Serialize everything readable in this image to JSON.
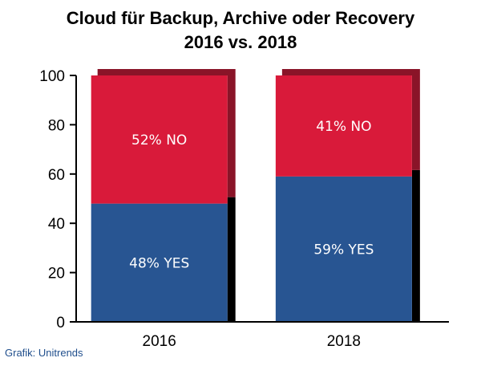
{
  "title_line1": "Cloud für Backup, Archive oder Recovery",
  "title_line2": "2016 vs. 2018",
  "source": "Grafik: Unitrends",
  "chart_data": {
    "type": "bar",
    "stacked": true,
    "categories": [
      "2016",
      "2018"
    ],
    "series": [
      {
        "name": "YES",
        "values": [
          48,
          59
        ],
        "labels": [
          "48% YES",
          "59% YES"
        ],
        "color": "#285592"
      },
      {
        "name": "NO",
        "values": [
          52,
          41
        ],
        "labels": [
          "52% NO",
          "41% NO"
        ],
        "color": "#d91a3a"
      }
    ],
    "shadow_colors": {
      "NO": "#8a1428",
      "YES": "#000000"
    },
    "ylim": [
      0,
      100
    ],
    "yticks": [
      0,
      20,
      40,
      60,
      80,
      100
    ],
    "grid": false,
    "legend": "none"
  }
}
